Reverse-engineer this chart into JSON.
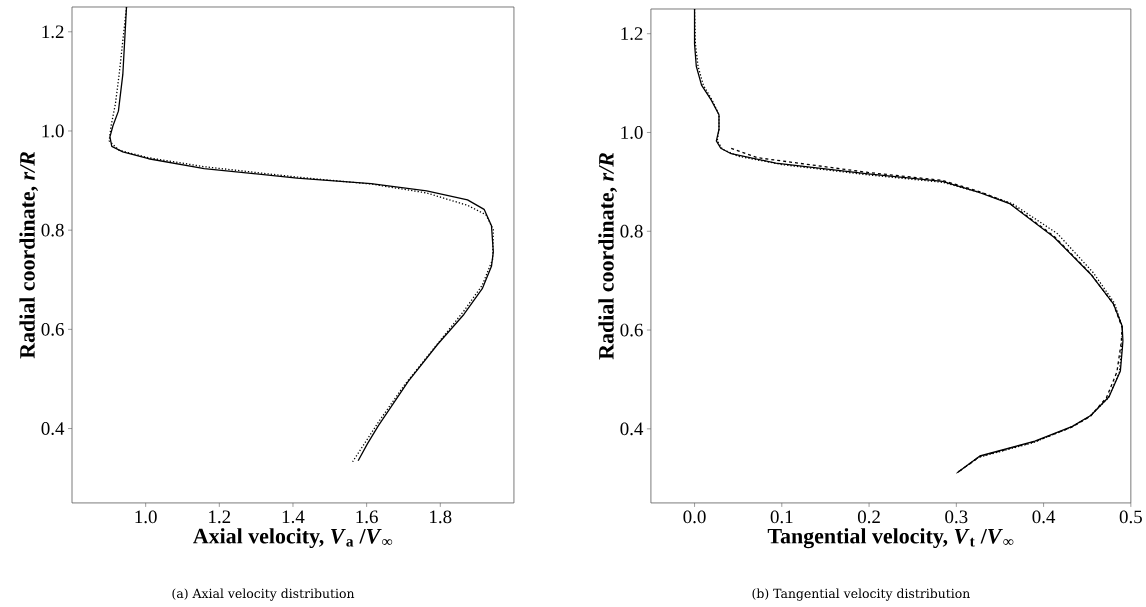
{
  "chart_data": [
    {
      "type": "line",
      "xlabel": "Axial velocity, *V*$_{a}$ /*V*$_{∞}$",
      "ylabel": "Radial coordinate, *r/R*",
      "annotations": [
        "(a) Axial velocity distribution"
      ],
      "xlim": [
        0.8,
        2.0
      ],
      "ylim": [
        0.25,
        1.25
      ],
      "xticks": [
        {
          "value": 1.0,
          "label": "1.0"
        },
        {
          "value": 1.2,
          "label": "1.2"
        },
        {
          "value": 1.4,
          "label": "1.4"
        },
        {
          "value": 1.6,
          "label": "1.6"
        },
        {
          "value": 1.8,
          "label": "1.8"
        }
      ],
      "yticks": [
        {
          "value": 0.4,
          "label": "0.4"
        },
        {
          "value": 0.6,
          "label": "0.6"
        },
        {
          "value": 0.8,
          "label": "0.8"
        },
        {
          "value": 1.0,
          "label": "1.0"
        },
        {
          "value": 1.2,
          "label": "1.2"
        }
      ],
      "marker": "none",
      "series": [
        {
          "color": "#000000",
          "line_style": "solid",
          "x": [
            0.948,
            0.938,
            0.926,
            0.911,
            0.903,
            0.908,
            0.938,
            1.008,
            1.159,
            1.411,
            1.612,
            1.763,
            1.874,
            1.919,
            1.939,
            1.944,
            1.939,
            1.914,
            1.864,
            1.793,
            1.713,
            1.632,
            1.602,
            1.577
          ],
          "values": [
            1.25,
            1.114,
            1.04,
            1.01,
            0.988,
            0.969,
            0.958,
            0.944,
            0.924,
            0.905,
            0.894,
            0.879,
            0.861,
            0.842,
            0.809,
            0.756,
            0.727,
            0.682,
            0.63,
            0.57,
            0.495,
            0.406,
            0.369,
            0.335
          ]
        },
        {
          "color": "#000000",
          "line_style": "dotted",
          "x": [
            0.948,
            0.928,
            0.918,
            0.906,
            0.901,
            0.928,
            1.008,
            1.159,
            1.411,
            1.612,
            1.763,
            1.874,
            1.924,
            1.944,
            1.942,
            1.914,
            1.864,
            1.783,
            1.703,
            1.632,
            1.562
          ],
          "values": [
            1.25,
            1.114,
            1.055,
            1.01,
            0.98,
            0.961,
            0.946,
            0.928,
            0.907,
            0.893,
            0.875,
            0.85,
            0.831,
            0.801,
            0.741,
            0.689,
            0.637,
            0.562,
            0.488,
            0.413,
            0.333
          ]
        }
      ]
    },
    {
      "type": "line",
      "xlabel": "Tangential velocity, *V*$_{t}$ /*V*$_{∞}$",
      "ylabel": "Radial coordinate, *r/R*",
      "annotations": [
        "(b) Tangential velocity distribution"
      ],
      "xlim": [
        -0.05,
        0.5
      ],
      "ylim": [
        0.25,
        1.25
      ],
      "xticks": [
        {
          "value": 0.0,
          "label": "0.0"
        },
        {
          "value": 0.1,
          "label": "0.1"
        },
        {
          "value": 0.2,
          "label": "0.2"
        },
        {
          "value": 0.3,
          "label": "0.3"
        },
        {
          "value": 0.4,
          "label": "0.4"
        },
        {
          "value": 0.5,
          "label": "0.5"
        }
      ],
      "yticks": [
        {
          "value": 0.4,
          "label": "0.4"
        },
        {
          "value": 0.6,
          "label": "0.6"
        },
        {
          "value": 0.8,
          "label": "0.8"
        },
        {
          "value": 1.0,
          "label": "1.0"
        },
        {
          "value": 1.2,
          "label": "1.2"
        }
      ],
      "marker": "none",
      "series": [
        {
          "color": "#000000",
          "line_style": "solid",
          "x": [
            0.0,
            0.0,
            0.002,
            0.008,
            0.019,
            0.028,
            0.028,
            0.025,
            0.03,
            0.042,
            0.093,
            0.199,
            0.284,
            0.327,
            0.361,
            0.412,
            0.454,
            0.48,
            0.49,
            0.491,
            0.488,
            0.475,
            0.454,
            0.433,
            0.39,
            0.327,
            0.301
          ],
          "values": [
            1.25,
            1.179,
            1.134,
            1.096,
            1.066,
            1.036,
            1.006,
            0.983,
            0.968,
            0.957,
            0.938,
            0.916,
            0.901,
            0.878,
            0.856,
            0.788,
            0.713,
            0.653,
            0.608,
            0.578,
            0.517,
            0.465,
            0.427,
            0.405,
            0.375,
            0.345,
            0.311
          ]
        },
        {
          "color": "#000000",
          "line_style": "dashed",
          "x": [
            0.042,
            0.072,
            0.199,
            0.284,
            0.327,
            0.361,
            0.412,
            0.454,
            0.48,
            0.49,
            0.489,
            0.484,
            0.472,
            0.454,
            0.433,
            0.39,
            0.327,
            0.301
          ],
          "values": [
            0.968,
            0.949,
            0.919,
            0.903,
            0.88,
            0.857,
            0.79,
            0.714,
            0.653,
            0.605,
            0.575,
            0.515,
            0.463,
            0.426,
            0.404,
            0.374,
            0.344,
            0.311
          ]
        },
        {
          "color": "#000000",
          "line_style": "dotted",
          "x": [
            0.0,
            0.001,
            0.004,
            0.01,
            0.02,
            0.028,
            0.028,
            0.026,
            0.032,
            0.05,
            0.1,
            0.2,
            0.285,
            0.33,
            0.365,
            0.416,
            0.457,
            0.481,
            0.49,
            0.49,
            0.487,
            0.474,
            0.452,
            0.43,
            0.388,
            0.325,
            0.3
          ],
          "values": [
            1.25,
            1.179,
            1.134,
            1.096,
            1.066,
            1.036,
            1.006,
            0.983,
            0.966,
            0.952,
            0.935,
            0.914,
            0.899,
            0.877,
            0.855,
            0.795,
            0.716,
            0.655,
            0.608,
            0.578,
            0.515,
            0.462,
            0.424,
            0.402,
            0.372,
            0.342,
            0.31
          ]
        }
      ]
    }
  ]
}
